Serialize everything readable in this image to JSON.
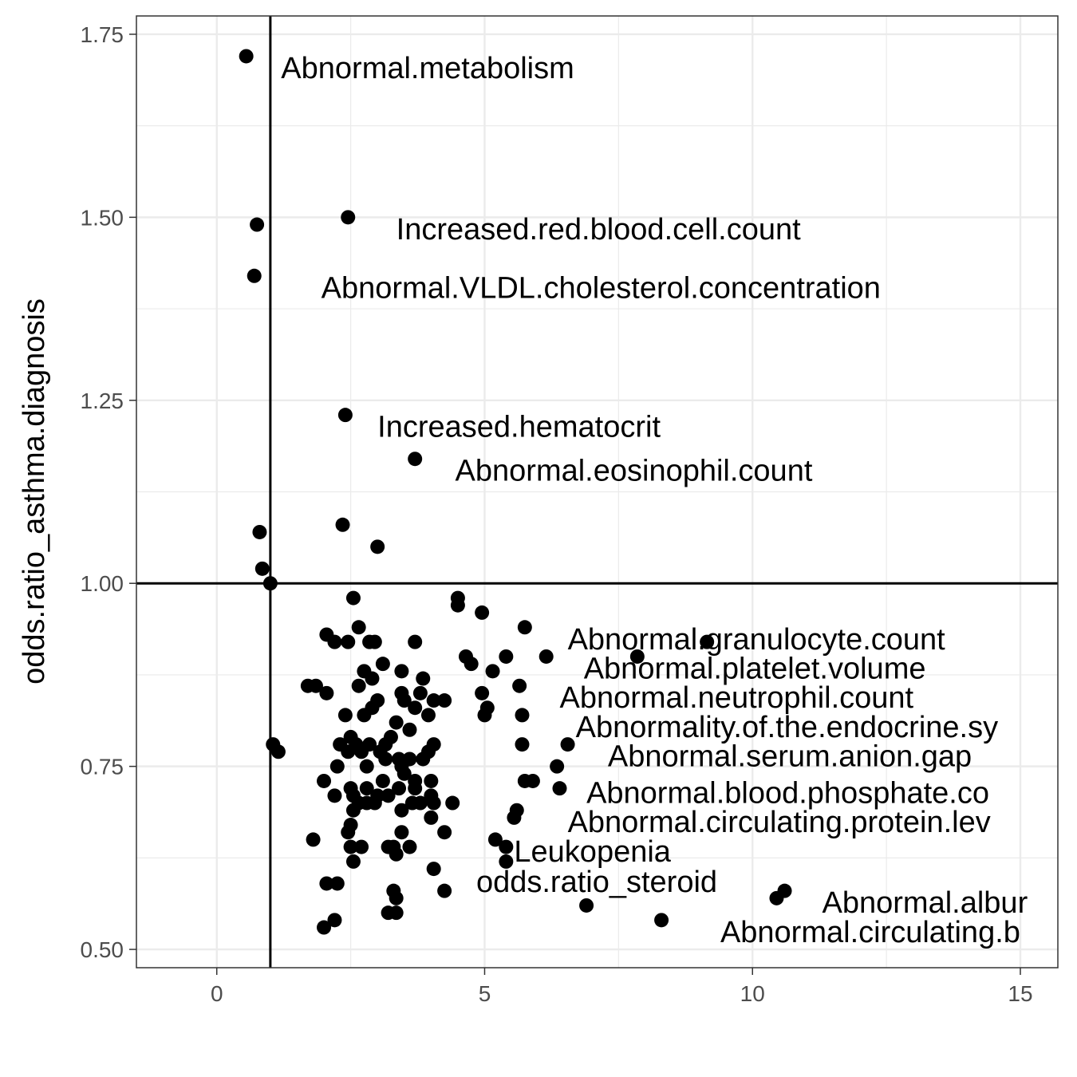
{
  "chart_data": {
    "type": "scatter",
    "title": "",
    "xlabel": "odds.ratio_steroid",
    "ylabel": "odds.ratio_asthma.diagnosis",
    "xlim": [
      -1.5,
      15.7
    ],
    "ylim": [
      0.475,
      1.775
    ],
    "x_ticks": [
      0,
      5,
      10,
      15
    ],
    "y_ticks": [
      0.5,
      0.75,
      1.0,
      1.25,
      1.5,
      1.75
    ],
    "x_tick_labels": [
      "0",
      "5",
      "10",
      "15"
    ],
    "y_tick_labels": [
      "0.50",
      "0.75",
      "1.00",
      "1.25",
      "1.50",
      "1.75"
    ],
    "grid": true,
    "reference_lines": {
      "vertical_x": 1.0,
      "horizontal_y": 1.0
    },
    "colors": {
      "points": "#000000",
      "grid": "#ebebeb",
      "panel_border": "#333333",
      "reference": "#000000"
    },
    "labeled_points": [
      {
        "x": 0.55,
        "y": 1.72,
        "label": "Abnormal.metabolism",
        "lx": 1.2,
        "ly": 1.69
      },
      {
        "x": 2.45,
        "y": 1.5,
        "label": "Increased.red.blood.cell.count",
        "lx": 3.35,
        "ly": 1.47
      },
      {
        "x": 0.7,
        "y": 1.42,
        "label": "Abnormal.VLDL.cholesterol.concentration",
        "lx": 1.95,
        "ly": 1.39
      },
      {
        "x": 2.4,
        "y": 1.23,
        "label": "Increased.hematocrit",
        "lx": 3.0,
        "ly": 1.2
      },
      {
        "x": 3.7,
        "y": 1.17,
        "label": "Abnormal.eosinophil.count",
        "lx": 4.45,
        "ly": 1.14
      },
      {
        "x": 5.75,
        "y": 0.94,
        "label": "Abnormal.granulocyte.count",
        "lx": 6.55,
        "ly": 0.91
      },
      {
        "x": 7.85,
        "y": 0.9,
        "label": "Abnormal.platelet.volume",
        "lx": 6.85,
        "ly": 0.87
      },
      {
        "x": 6.45,
        "y": 0.86,
        "label": "Abnormal.neutrophil.count",
        "lx": 6.4,
        "ly": 0.83
      },
      {
        "x": 6.1,
        "y": 0.82,
        "label": "Abnormality.of.the.endocrine.sy",
        "lx": 6.7,
        "ly": 0.79
      },
      {
        "x": 6.55,
        "y": 0.78,
        "label": "Abnormal.serum.anion.gap",
        "lx": 7.3,
        "ly": 0.75
      },
      {
        "x": 6.4,
        "y": 0.72,
        "label": "Abnormal.blood.phosphate.co",
        "lx": 6.9,
        "ly": 0.7
      },
      {
        "x": 5.6,
        "y": 0.69,
        "label": "Abnormal.circulating.protein.lev",
        "lx": 6.55,
        "ly": 0.66
      },
      {
        "x": 5.4,
        "y": 0.64,
        "label": "Leukopenia",
        "lx": 5.55,
        "ly": 0.62
      },
      {
        "x": 10.6,
        "y": 0.58,
        "label": "Abnormal.albur",
        "lx": 11.3,
        "ly": 0.55
      },
      {
        "x": 8.3,
        "y": 0.54,
        "label": "Abnormal.circulating.b",
        "lx": 9.4,
        "ly": 0.51
      }
    ],
    "points": [
      [
        0.55,
        1.72
      ],
      [
        0.75,
        1.49
      ],
      [
        0.7,
        1.42
      ],
      [
        2.45,
        1.5
      ],
      [
        2.4,
        1.23
      ],
      [
        3.7,
        1.17
      ],
      [
        0.8,
        1.07
      ],
      [
        0.85,
        1.02
      ],
      [
        1.0,
        1.0
      ],
      [
        2.35,
        1.08
      ],
      [
        3.0,
        1.05
      ],
      [
        1.05,
        0.78
      ],
      [
        1.15,
        0.77
      ],
      [
        2.55,
        0.98
      ],
      [
        2.65,
        0.94
      ],
      [
        2.05,
        0.93
      ],
      [
        2.2,
        0.92
      ],
      [
        2.45,
        0.92
      ],
      [
        2.85,
        0.92
      ],
      [
        2.95,
        0.92
      ],
      [
        3.7,
        0.92
      ],
      [
        4.5,
        0.98
      ],
      [
        4.5,
        0.97
      ],
      [
        4.95,
        0.96
      ],
      [
        4.65,
        0.9
      ],
      [
        4.75,
        0.89
      ],
      [
        5.15,
        0.88
      ],
      [
        5.4,
        0.9
      ],
      [
        5.75,
        0.94
      ],
      [
        6.15,
        0.9
      ],
      [
        7.85,
        0.9
      ],
      [
        9.15,
        0.92
      ],
      [
        5.65,
        0.86
      ],
      [
        4.95,
        0.85
      ],
      [
        5.05,
        0.83
      ],
      [
        5.0,
        0.82
      ],
      [
        5.7,
        0.82
      ],
      [
        5.7,
        0.78
      ],
      [
        6.55,
        0.78
      ],
      [
        6.35,
        0.75
      ],
      [
        6.4,
        0.72
      ],
      [
        5.75,
        0.73
      ],
      [
        5.9,
        0.73
      ],
      [
        5.6,
        0.69
      ],
      [
        5.55,
        0.68
      ],
      [
        5.4,
        0.64
      ],
      [
        5.2,
        0.65
      ],
      [
        5.4,
        0.62
      ],
      [
        6.9,
        0.56
      ],
      [
        8.3,
        0.54
      ],
      [
        10.45,
        0.57
      ],
      [
        10.6,
        0.58
      ],
      [
        1.7,
        0.86
      ],
      [
        1.85,
        0.86
      ],
      [
        2.05,
        0.85
      ],
      [
        2.75,
        0.88
      ],
      [
        2.9,
        0.87
      ],
      [
        2.65,
        0.86
      ],
      [
        3.1,
        0.89
      ],
      [
        3.45,
        0.88
      ],
      [
        3.85,
        0.87
      ],
      [
        3.45,
        0.85
      ],
      [
        3.8,
        0.85
      ],
      [
        3.5,
        0.84
      ],
      [
        3.0,
        0.84
      ],
      [
        2.9,
        0.83
      ],
      [
        2.75,
        0.82
      ],
      [
        2.4,
        0.82
      ],
      [
        3.7,
        0.83
      ],
      [
        3.95,
        0.82
      ],
      [
        4.05,
        0.84
      ],
      [
        4.25,
        0.84
      ],
      [
        3.35,
        0.81
      ],
      [
        3.6,
        0.8
      ],
      [
        2.5,
        0.79
      ],
      [
        3.25,
        0.79
      ],
      [
        2.3,
        0.78
      ],
      [
        2.45,
        0.77
      ],
      [
        2.6,
        0.78
      ],
      [
        2.7,
        0.77
      ],
      [
        2.85,
        0.78
      ],
      [
        3.05,
        0.77
      ],
      [
        3.15,
        0.78
      ],
      [
        3.4,
        0.76
      ],
      [
        3.6,
        0.76
      ],
      [
        3.85,
        0.76
      ],
      [
        3.95,
        0.77
      ],
      [
        4.05,
        0.78
      ],
      [
        2.25,
        0.75
      ],
      [
        2.8,
        0.75
      ],
      [
        3.15,
        0.76
      ],
      [
        3.45,
        0.75
      ],
      [
        3.5,
        0.74
      ],
      [
        3.1,
        0.73
      ],
      [
        2.0,
        0.73
      ],
      [
        2.5,
        0.72
      ],
      [
        2.8,
        0.72
      ],
      [
        3.0,
        0.71
      ],
      [
        3.4,
        0.72
      ],
      [
        3.7,
        0.73
      ],
      [
        3.7,
        0.72
      ],
      [
        4.0,
        0.73
      ],
      [
        2.2,
        0.71
      ],
      [
        2.55,
        0.71
      ],
      [
        2.65,
        0.7
      ],
      [
        2.8,
        0.7
      ],
      [
        2.95,
        0.7
      ],
      [
        3.2,
        0.71
      ],
      [
        3.65,
        0.7
      ],
      [
        3.8,
        0.7
      ],
      [
        4.0,
        0.71
      ],
      [
        4.05,
        0.7
      ],
      [
        4.4,
        0.7
      ],
      [
        2.55,
        0.69
      ],
      [
        3.45,
        0.69
      ],
      [
        4.0,
        0.68
      ],
      [
        2.5,
        0.67
      ],
      [
        2.45,
        0.66
      ],
      [
        3.45,
        0.66
      ],
      [
        4.25,
        0.66
      ],
      [
        1.8,
        0.65
      ],
      [
        2.5,
        0.64
      ],
      [
        2.7,
        0.64
      ],
      [
        3.2,
        0.64
      ],
      [
        3.3,
        0.64
      ],
      [
        3.6,
        0.64
      ],
      [
        3.35,
        0.63
      ],
      [
        2.55,
        0.62
      ],
      [
        4.05,
        0.61
      ],
      [
        2.05,
        0.59
      ],
      [
        2.25,
        0.59
      ],
      [
        3.3,
        0.58
      ],
      [
        4.25,
        0.58
      ],
      [
        3.35,
        0.57
      ],
      [
        3.2,
        0.55
      ],
      [
        3.35,
        0.55
      ],
      [
        2.2,
        0.54
      ],
      [
        2.0,
        0.53
      ]
    ]
  }
}
